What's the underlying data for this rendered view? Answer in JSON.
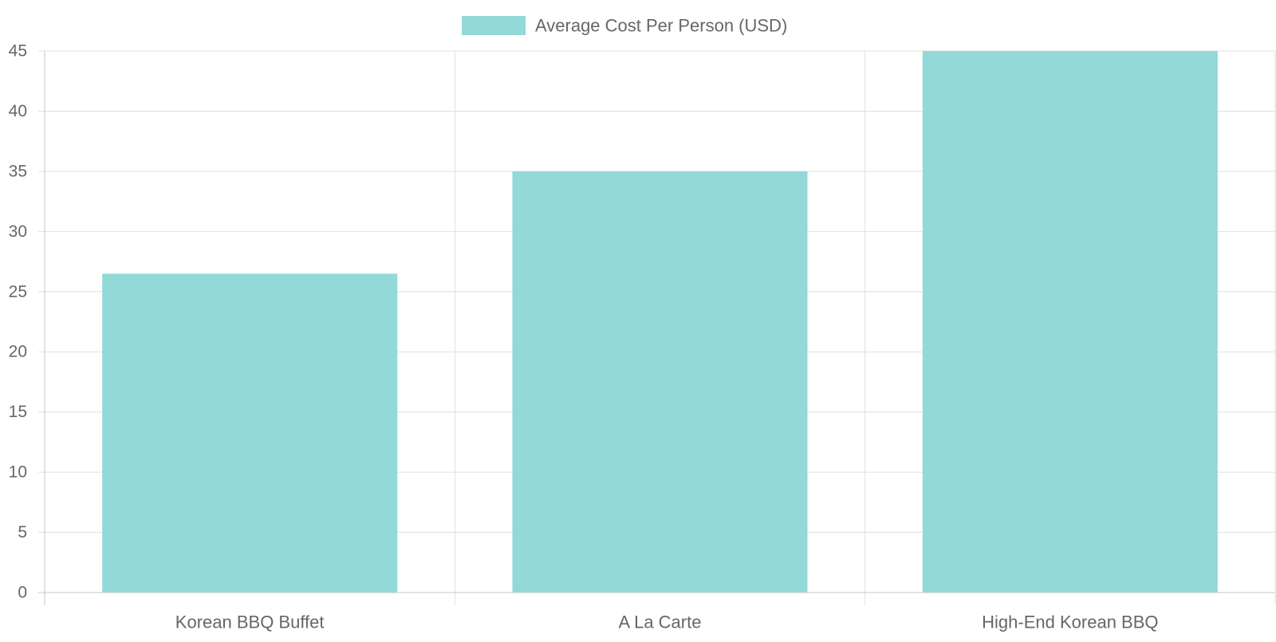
{
  "chart_data": {
    "type": "bar",
    "categories": [
      "Korean BBQ Buffet",
      "A La Carte",
      "High-End Korean BBQ"
    ],
    "series": [
      {
        "name": "Average Cost Per Person (USD)",
        "values": [
          26.5,
          35,
          45
        ],
        "color": "#92d9d7"
      }
    ],
    "title": "",
    "xlabel": "",
    "ylabel": "",
    "ylim": [
      0,
      45
    ],
    "yticks": [
      "0",
      "5",
      "10",
      "15",
      "20",
      "25",
      "30",
      "35",
      "40",
      "45"
    ],
    "grid": true,
    "legend_position": "top-center"
  },
  "colors": {
    "bar": "#92d9d7",
    "grid": "#e0e0e0",
    "axis": "#c8c8c8",
    "text": "#666666"
  }
}
